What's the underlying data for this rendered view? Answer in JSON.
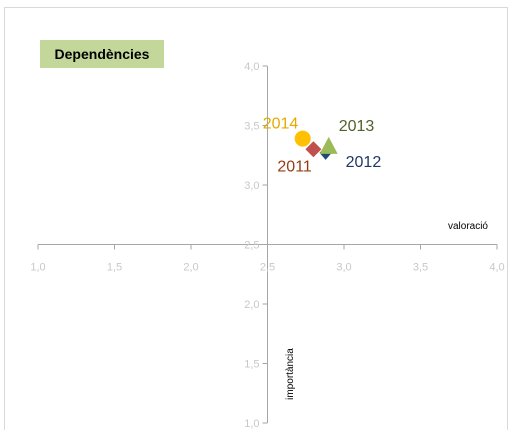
{
  "chart_data": {
    "type": "scatter",
    "title": "Dependències",
    "xlabel": "valoració",
    "ylabel": "importància",
    "xlim": [
      1.0,
      4.0
    ],
    "ylim": [
      1.0,
      4.0
    ],
    "x_ticks": [
      "1,0",
      "1,5",
      "2,0",
      "2,5",
      "3,0",
      "3,5",
      "4,0"
    ],
    "y_ticks": [
      "1,0",
      "1,5",
      "2,0",
      "2,5",
      "3,0",
      "3,5",
      "4,0"
    ],
    "axes_cross": [
      2.5,
      2.5
    ],
    "grid": false,
    "series": [
      {
        "name": "2011",
        "x": 2.8,
        "y": 3.3,
        "marker": "square",
        "color": "#c0504d",
        "label_color": "#963c14"
      },
      {
        "name": "2012",
        "x": 2.88,
        "y": 3.27,
        "marker": "diamond",
        "color": "#1f497d",
        "label_color": "#1f3864"
      },
      {
        "name": "2013",
        "x": 2.9,
        "y": 3.32,
        "marker": "triangle",
        "color": "#9bbb59",
        "label_color": "#4f6228"
      },
      {
        "name": "2014",
        "x": 2.73,
        "y": 3.39,
        "marker": "circle",
        "color": "#ffc000",
        "label_color": "#e6a800"
      }
    ]
  }
}
